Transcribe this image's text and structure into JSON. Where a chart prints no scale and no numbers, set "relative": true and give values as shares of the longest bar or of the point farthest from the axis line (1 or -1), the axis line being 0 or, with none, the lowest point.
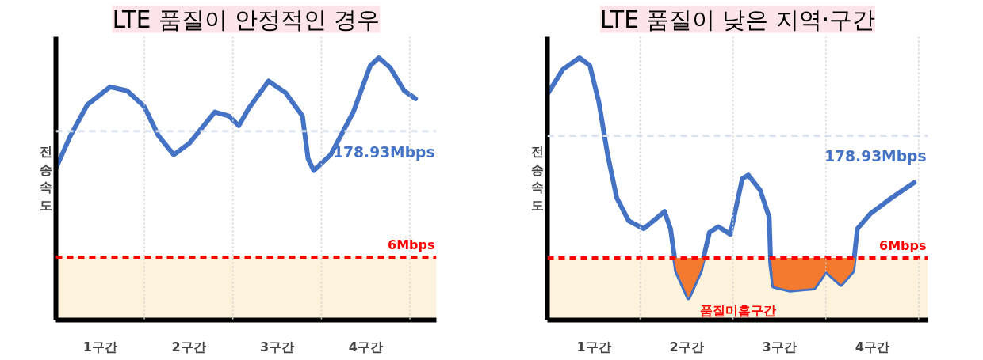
{
  "chart_data": [
    {
      "type": "line",
      "title": "LTE 품질이 안정적인 경우",
      "ylabel": "전송속도",
      "relative": true,
      "grid": false,
      "marker": "none",
      "line_style": "solid",
      "tick_labels": "x",
      "xlim": [
        0,
        4.3
      ],
      "xticks": [
        {
          "value": 0.5,
          "label": "1구간"
        },
        {
          "value": 1.5,
          "label": "2구간"
        },
        {
          "value": 2.5,
          "label": "3구간"
        },
        {
          "value": 3.5,
          "label": "4구간"
        }
      ],
      "series": [
        {
          "color": "#4472c4",
          "x": [
            0,
            0.166,
            0.358,
            0.613,
            0.805,
            0.997,
            1.157,
            1.332,
            1.508,
            1.796,
            1.955,
            2.067,
            2.179,
            2.403,
            2.594,
            2.786,
            2.85,
            2.914,
            3.105,
            3.361,
            3.553,
            3.649,
            3.776,
            3.936,
            4.064
          ],
          "values": [
            0.578,
            0.704,
            0.822,
            0.889,
            0.874,
            0.815,
            0.704,
            0.63,
            0.674,
            0.793,
            0.778,
            0.741,
            0.807,
            0.911,
            0.867,
            0.778,
            0.615,
            0.57,
            0.63,
            0.793,
            0.97,
            1.0,
            0.963,
            0.874,
            0.844
          ]
        }
      ],
      "ref_lines": [
        {
          "axis": "y",
          "value": 0.72,
          "label": "178.93Mbps",
          "color": "#dce3f0",
          "line_style": "dashed"
        },
        {
          "axis": "y",
          "value": 0.24,
          "label": "6Mbps",
          "color": "#ff0000",
          "line_style": "dashed"
        },
        {
          "axis": "x",
          "value": 1,
          "label": null,
          "color": "#d0d0d0",
          "line_style": "dotted"
        },
        {
          "axis": "x",
          "value": 2,
          "label": null,
          "color": "#d0d0d0",
          "line_style": "dotted"
        },
        {
          "axis": "x",
          "value": 3,
          "label": null,
          "color": "#d0d0d0",
          "line_style": "dotted"
        },
        {
          "axis": "x",
          "value": 4,
          "label": null,
          "color": "#d0d0d0",
          "line_style": "dotted"
        }
      ],
      "bands": [
        {
          "axis": "y",
          "from": 0,
          "to": 0.24,
          "label": null,
          "color": "#fdf3dc"
        }
      ]
    },
    {
      "type": "line",
      "title": "LTE 품질이 낮은 지역·구간",
      "ylabel": "전송속도",
      "relative": true,
      "grid": false,
      "marker": "none",
      "line_style": "solid",
      "tick_labels": "x",
      "xlim": [
        0,
        4.1
      ],
      "xticks": [
        {
          "value": 0.5,
          "label": "1구간"
        },
        {
          "value": 1.5,
          "label": "2구간"
        },
        {
          "value": 2.5,
          "label": "3구간"
        },
        {
          "value": 3.5,
          "label": "4구간"
        }
      ],
      "series": [
        {
          "color": "#4472c4",
          "x": [
            0,
            0.167,
            0.345,
            0.457,
            0.554,
            0.651,
            0.747,
            0.876,
            1.037,
            1.166,
            1.262,
            1.327,
            1.391,
            1.52,
            1.649,
            1.746,
            1.842,
            1.971,
            2.1,
            2.164,
            2.293,
            2.39,
            2.406,
            2.438,
            2.615,
            2.873,
            3.002,
            3.163,
            3.291,
            3.34,
            3.485,
            3.71,
            3.952
          ],
          "values": [
            0.861,
            0.956,
            1.0,
            0.971,
            0.832,
            0.627,
            0.466,
            0.378,
            0.348,
            0.385,
            0.414,
            0.348,
            0.187,
            0.085,
            0.187,
            0.334,
            0.356,
            0.327,
            0.539,
            0.553,
            0.495,
            0.392,
            0.216,
            0.129,
            0.114,
            0.122,
            0.187,
            0.136,
            0.187,
            0.348,
            0.407,
            0.466,
            0.524
          ]
        },
        {
          "type": "area",
          "color": "#f47a30",
          "x": [
            1.36,
            1.391,
            1.52,
            1.649,
            1.7
          ],
          "values": [
            0.237,
            0.187,
            0.085,
            0.187,
            0.237
          ]
        },
        {
          "type": "area",
          "color": "#f47a30",
          "x": [
            2.41,
            2.438,
            2.615,
            2.873,
            3.002,
            3.163,
            3.291,
            3.32
          ],
          "values": [
            0.237,
            0.129,
            0.114,
            0.122,
            0.187,
            0.136,
            0.187,
            0.237
          ]
        }
      ],
      "ref_lines": [
        {
          "axis": "y",
          "value": 0.703,
          "label": "178.93Mbps",
          "color": "#dce3f0",
          "line_style": "dashed"
        },
        {
          "axis": "y",
          "value": 0.237,
          "label": "6Mbps",
          "color": "#ff0000",
          "line_style": "dashed"
        },
        {
          "axis": "x",
          "value": 1,
          "label": null,
          "color": "#d0d0d0",
          "line_style": "dotted"
        },
        {
          "axis": "x",
          "value": 2,
          "label": null,
          "color": "#d0d0d0",
          "line_style": "dotted"
        },
        {
          "axis": "x",
          "value": 3,
          "label": null,
          "color": "#d0d0d0",
          "line_style": "dotted"
        },
        {
          "axis": "x",
          "value": 4,
          "label": null,
          "color": "#d0d0d0",
          "line_style": "dotted"
        }
      ],
      "bands": [
        {
          "axis": "y",
          "from": 0,
          "to": 0.237,
          "label": null,
          "color": "#fdf3dc"
        }
      ],
      "annotations": [
        "품질미흡구간"
      ]
    }
  ]
}
